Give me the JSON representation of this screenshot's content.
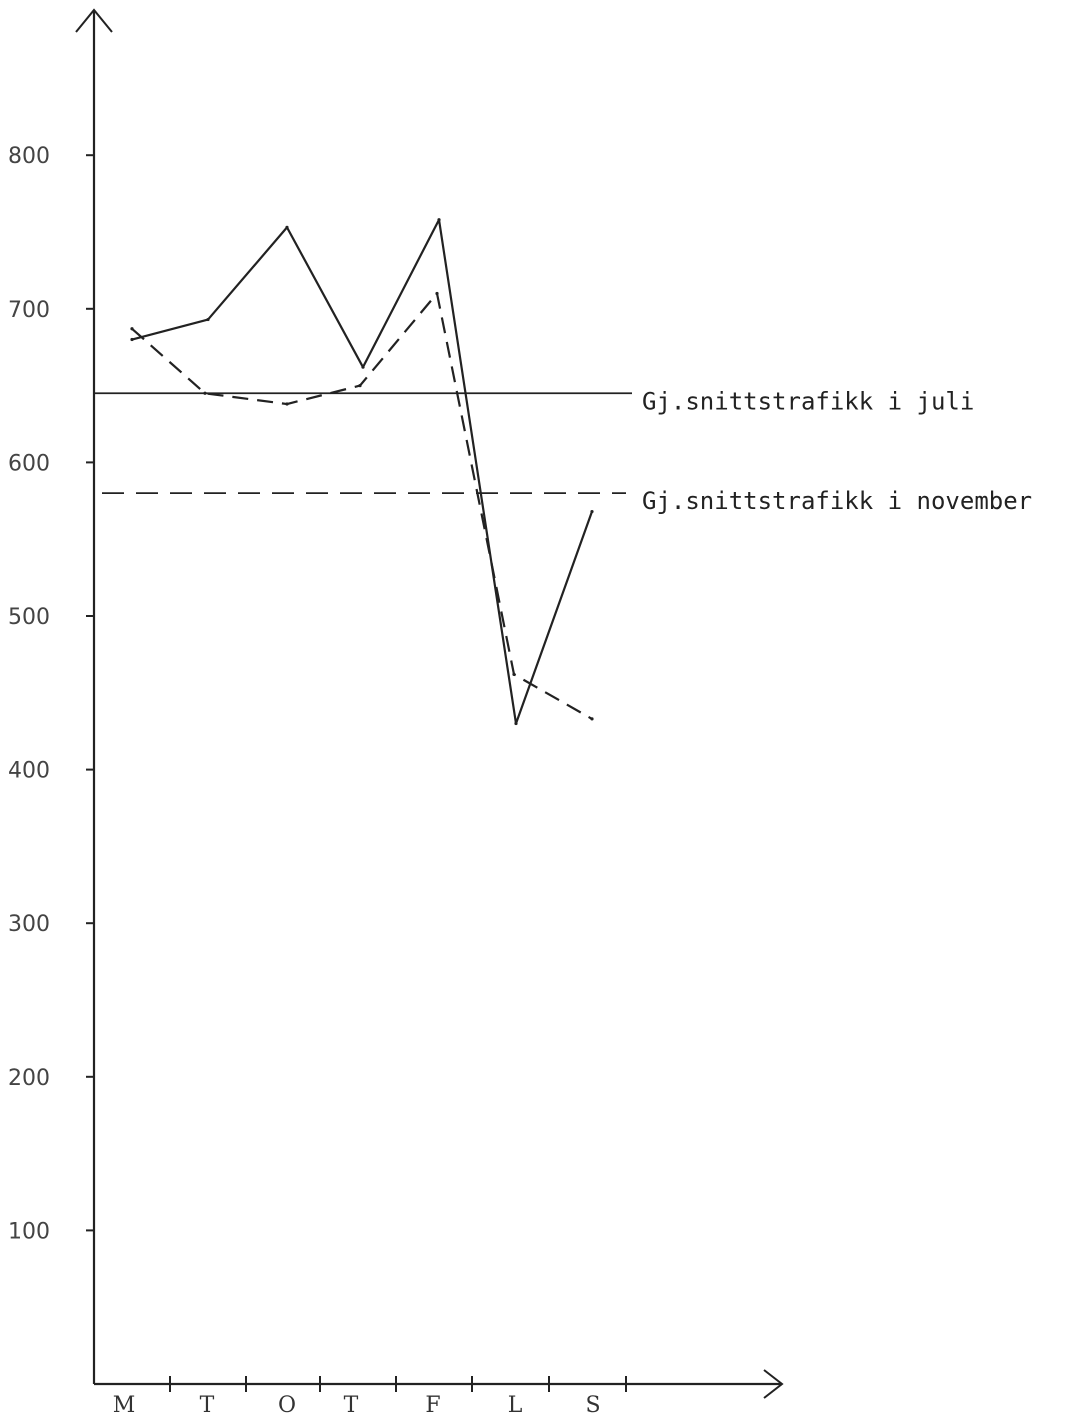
{
  "chart_data": {
    "type": "line",
    "categories": [
      "M",
      "T",
      "O",
      "T",
      "F",
      "L",
      "S"
    ],
    "ylim": [
      0,
      850
    ],
    "yticks": [
      100,
      200,
      300,
      400,
      500,
      600,
      700,
      800
    ],
    "ytick_labels": [
      "100",
      "200",
      "300",
      "400",
      "500",
      "600",
      "700",
      "800"
    ],
    "series": [
      {
        "values": [
          680,
          693,
          753,
          662,
          758,
          430,
          568
        ],
        "style": "solid",
        "color": "#222222"
      },
      {
        "values": [
          687,
          645,
          638,
          650,
          710,
          462,
          433
        ],
        "style": "dashed",
        "color": "#222222"
      }
    ],
    "reference_lines": [
      {
        "label": "Gj.snittstrafikk i juli",
        "value": 645,
        "style": "solid"
      },
      {
        "label": "Gj.snittstrafikk i november",
        "value": 580,
        "style": "dashed"
      }
    ],
    "grid": false,
    "title": "",
    "xlabel": "",
    "ylabel": ""
  }
}
